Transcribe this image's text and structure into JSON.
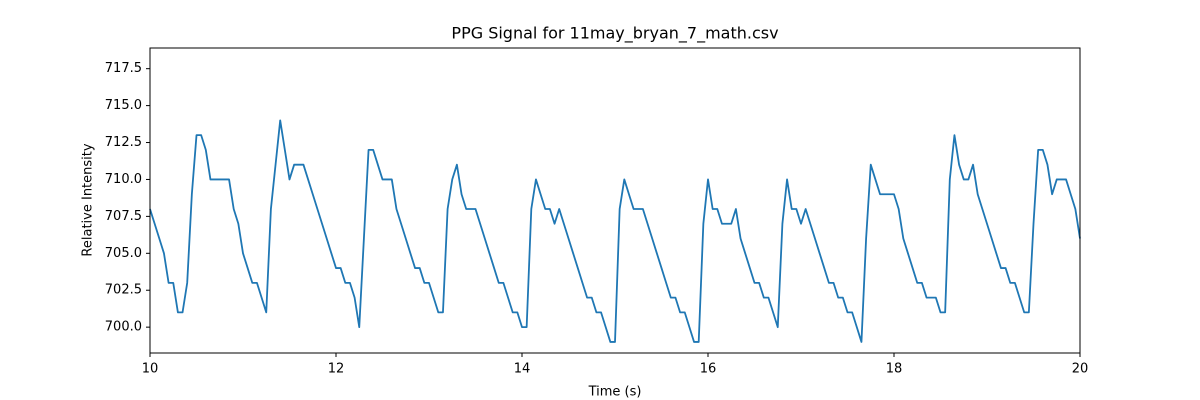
{
  "chart_data": {
    "type": "line",
    "title": "PPG Signal for 11may_bryan_7_math.csv",
    "x_label": "Time (s)",
    "y_label": "Relative Intensity",
    "color": "#1f77b4",
    "x": [
      10,
      10.05,
      10.1,
      10.15,
      10.2,
      10.25,
      10.3,
      10.35,
      10.4,
      10.45,
      10.5,
      10.55,
      10.6,
      10.65,
      10.7,
      10.75,
      10.8,
      10.85,
      10.9,
      10.95,
      11,
      11.05,
      11.1,
      11.15,
      11.2,
      11.25,
      11.3,
      11.35,
      11.4,
      11.45,
      11.5,
      11.55,
      11.6,
      11.65,
      11.7,
      11.75,
      11.8,
      11.85,
      11.9,
      11.95,
      12,
      12.05,
      12.1,
      12.15,
      12.2,
      12.25,
      12.3,
      12.35,
      12.4,
      12.45,
      12.5,
      12.55,
      12.6,
      12.65,
      12.7,
      12.75,
      12.8,
      12.85,
      12.9,
      12.95,
      13,
      13.05,
      13.1,
      13.15,
      13.2,
      13.25,
      13.3,
      13.35,
      13.4,
      13.45,
      13.5,
      13.55,
      13.6,
      13.65,
      13.7,
      13.75,
      13.8,
      13.85,
      13.9,
      13.95,
      14,
      14.05,
      14.1,
      14.15,
      14.2,
      14.25,
      14.3,
      14.35,
      14.4,
      14.45,
      14.5,
      14.55,
      14.6,
      14.65,
      14.7,
      14.75,
      14.8,
      14.85,
      14.9,
      14.95,
      15,
      15.05,
      15.1,
      15.15,
      15.2,
      15.25,
      15.3,
      15.35,
      15.4,
      15.45,
      15.5,
      15.55,
      15.6,
      15.65,
      15.7,
      15.75,
      15.8,
      15.85,
      15.9,
      15.95,
      16,
      16.05,
      16.1,
      16.15,
      16.2,
      16.25,
      16.3,
      16.35,
      16.4,
      16.45,
      16.5,
      16.55,
      16.6,
      16.65,
      16.7,
      16.75,
      16.8,
      16.85,
      16.9,
      16.95,
      17,
      17.05,
      17.1,
      17.15,
      17.2,
      17.25,
      17.3,
      17.35,
      17.4,
      17.45,
      17.5,
      17.55,
      17.6,
      17.65,
      17.7,
      17.75,
      17.8,
      17.85,
      17.9,
      17.95,
      18,
      18.05,
      18.1,
      18.15,
      18.2,
      18.25,
      18.3,
      18.35,
      18.4,
      18.45,
      18.5,
      18.55,
      18.6,
      18.65,
      18.7,
      18.75,
      18.8,
      18.85,
      18.9,
      18.95,
      19,
      19.05,
      19.1,
      19.15,
      19.2,
      19.25,
      19.3,
      19.35,
      19.4,
      19.45,
      19.5,
      19.55,
      19.6,
      19.65,
      19.7,
      19.75,
      19.8,
      19.85,
      19.9,
      19.95,
      20
    ],
    "values": [
      708,
      707,
      706,
      705,
      703,
      703,
      701,
      701,
      703,
      709,
      713,
      713,
      712,
      710,
      710,
      710,
      710,
      710,
      708,
      707,
      705,
      704,
      703,
      703,
      702,
      701,
      708,
      711,
      714,
      712,
      710,
      711,
      711,
      711,
      710,
      709,
      708,
      707,
      706,
      705,
      704,
      704,
      703,
      703,
      702,
      700,
      706,
      712,
      712,
      711,
      710,
      710,
      710,
      708,
      707,
      706,
      705,
      704,
      704,
      703,
      703,
      702,
      701,
      701,
      708,
      710,
      711,
      709,
      708,
      708,
      708,
      707,
      706,
      705,
      704,
      703,
      703,
      702,
      701,
      701,
      700,
      700,
      708,
      710,
      709,
      708,
      708,
      707,
      708,
      707,
      706,
      705,
      704,
      703,
      702,
      702,
      701,
      701,
      700,
      699,
      699,
      708,
      710,
      709,
      708,
      708,
      708,
      707,
      706,
      705,
      704,
      703,
      702,
      702,
      701,
      701,
      700,
      699,
      699,
      707,
      710,
      708,
      708,
      707,
      707,
      707,
      708,
      706,
      705,
      704,
      703,
      703,
      702,
      702,
      701,
      700,
      707,
      710,
      708,
      708,
      707,
      708,
      707,
      706,
      705,
      704,
      703,
      703,
      702,
      702,
      701,
      701,
      700,
      699,
      706,
      711,
      710,
      709,
      709,
      709,
      709,
      708,
      706,
      705,
      704,
      703,
      703,
      702,
      702,
      702,
      701,
      701,
      710,
      713,
      711,
      710,
      710,
      711,
      709,
      708,
      707,
      706,
      705,
      704,
      704,
      703,
      703,
      702,
      701,
      701,
      707,
      712,
      712,
      711,
      709,
      710,
      710,
      710,
      709,
      708,
      706
    ],
    "xlim": [
      10,
      20
    ],
    "xticks": [
      10,
      12,
      14,
      16,
      18,
      20
    ],
    "ylim": [
      698.25,
      718.9
    ],
    "yticks": [
      {
        "value": 700,
        "label": "700.0"
      },
      {
        "value": 702.5,
        "label": "702.5"
      },
      {
        "value": 705,
        "label": "705.0"
      },
      {
        "value": 707.5,
        "label": "707.5"
      },
      {
        "value": 710,
        "label": "710.0"
      },
      {
        "value": 712.5,
        "label": "712.5"
      },
      {
        "value": 715,
        "label": "715.0"
      },
      {
        "value": 717.5,
        "label": "717.5"
      }
    ],
    "grid": false
  }
}
